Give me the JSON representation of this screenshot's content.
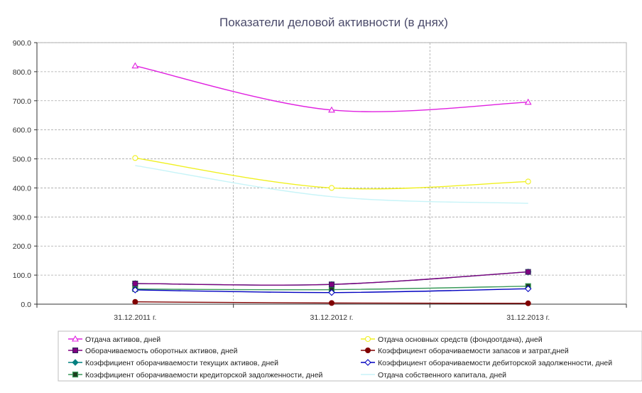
{
  "chart_data": {
    "type": "line",
    "title": "Показатели деловой активности (в днях)",
    "categories": [
      "31.12.2011 г.",
      "31.12.2012 г.",
      "31.12.2013 г."
    ],
    "y_ticks": [
      "0.0",
      "100.0",
      "200.0",
      "300.0",
      "400.0",
      "500.0",
      "600.0",
      "700.0",
      "800.0",
      "900.0"
    ],
    "ylim": [
      0,
      900
    ],
    "grid": true,
    "legend_position": "bottom",
    "series": [
      {
        "name": "Отдача активов, дней",
        "values": [
          820,
          668,
          695
        ],
        "color": "#e020e0",
        "marker": "triangle"
      },
      {
        "name": "Отдача основных средств (фондоотдача), дней",
        "values": [
          503,
          400,
          422
        ],
        "color": "#f0f020",
        "marker": "circle-open"
      },
      {
        "name": "Оборачиваемость оборотных активов, дней",
        "values": [
          71,
          68,
          111
        ],
        "color": "#800080",
        "marker": "square"
      },
      {
        "name": "Коэффициент оборачиваемости запасов и затрат,дней",
        "values": [
          8,
          4,
          3
        ],
        "color": "#800000",
        "marker": "circle"
      },
      {
        "name": "Коэффициент оборачиваемости текущих активов, дней",
        "values": [
          71,
          68,
          111
        ],
        "color": "#008080",
        "marker": "diamond"
      },
      {
        "name": "Коэффициент оборачиваемости дебиторской задолженности, дней",
        "values": [
          49,
          40,
          53
        ],
        "color": "#0000c0",
        "marker": "diamond-open"
      },
      {
        "name": "Коэффициент оборачиваемости кредиторской задолженности, дней",
        "values": [
          52,
          50,
          62
        ],
        "color": "#3a9a5a",
        "marker": "square-dark"
      },
      {
        "name": "Отдача собственного капитала, дней",
        "values": [
          477,
          370,
          347
        ],
        "color": "#c8f4f8",
        "marker": "none"
      }
    ]
  }
}
